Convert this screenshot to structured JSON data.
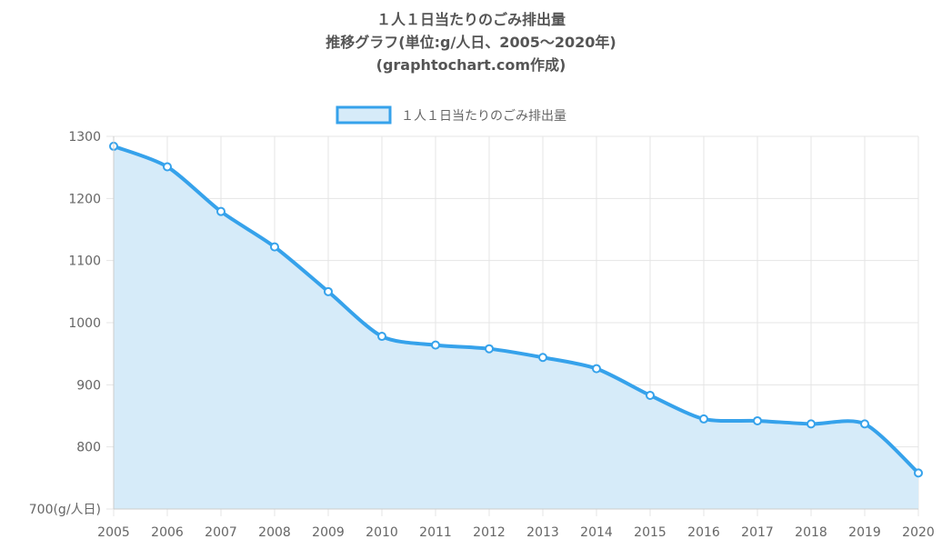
{
  "chart_data": {
    "type": "area",
    "title_lines": [
      "１人１日当たりのごみ排出量",
      "推移グラフ(単位:g/人日、2005〜2020年)",
      "(graphtochart.com作成)"
    ],
    "legend": {
      "label": "１人１日当たりのごみ排出量",
      "position": "top"
    },
    "x": [
      "2005",
      "2006",
      "2007",
      "2008",
      "2009",
      "2010",
      "2011",
      "2012",
      "2013",
      "2014",
      "2015",
      "2016",
      "2017",
      "2018",
      "2019",
      "2020"
    ],
    "series": [
      {
        "name": "１人１日当たりのごみ排出量",
        "values": [
          1284,
          1251,
          1179,
          1122,
          1050,
          978,
          964,
          958,
          944,
          926,
          883,
          845,
          842,
          837,
          837,
          758
        ]
      }
    ],
    "ylim": [
      700,
      1300
    ],
    "yticks": [
      {
        "value": 1300,
        "label": "1300"
      },
      {
        "value": 1200,
        "label": "1200"
      },
      {
        "value": 1100,
        "label": "1100"
      },
      {
        "value": 1000,
        "label": "1000"
      },
      {
        "value": 900,
        "label": "900"
      },
      {
        "value": 800,
        "label": "800"
      },
      {
        "value": 700,
        "label": "700(g/人日)"
      }
    ],
    "grid": true,
    "colors": {
      "line": "#36a2eb",
      "fill": "#d6ebf9",
      "grid": "#e5e5e5",
      "text": "#666666",
      "title": "#555555"
    }
  }
}
